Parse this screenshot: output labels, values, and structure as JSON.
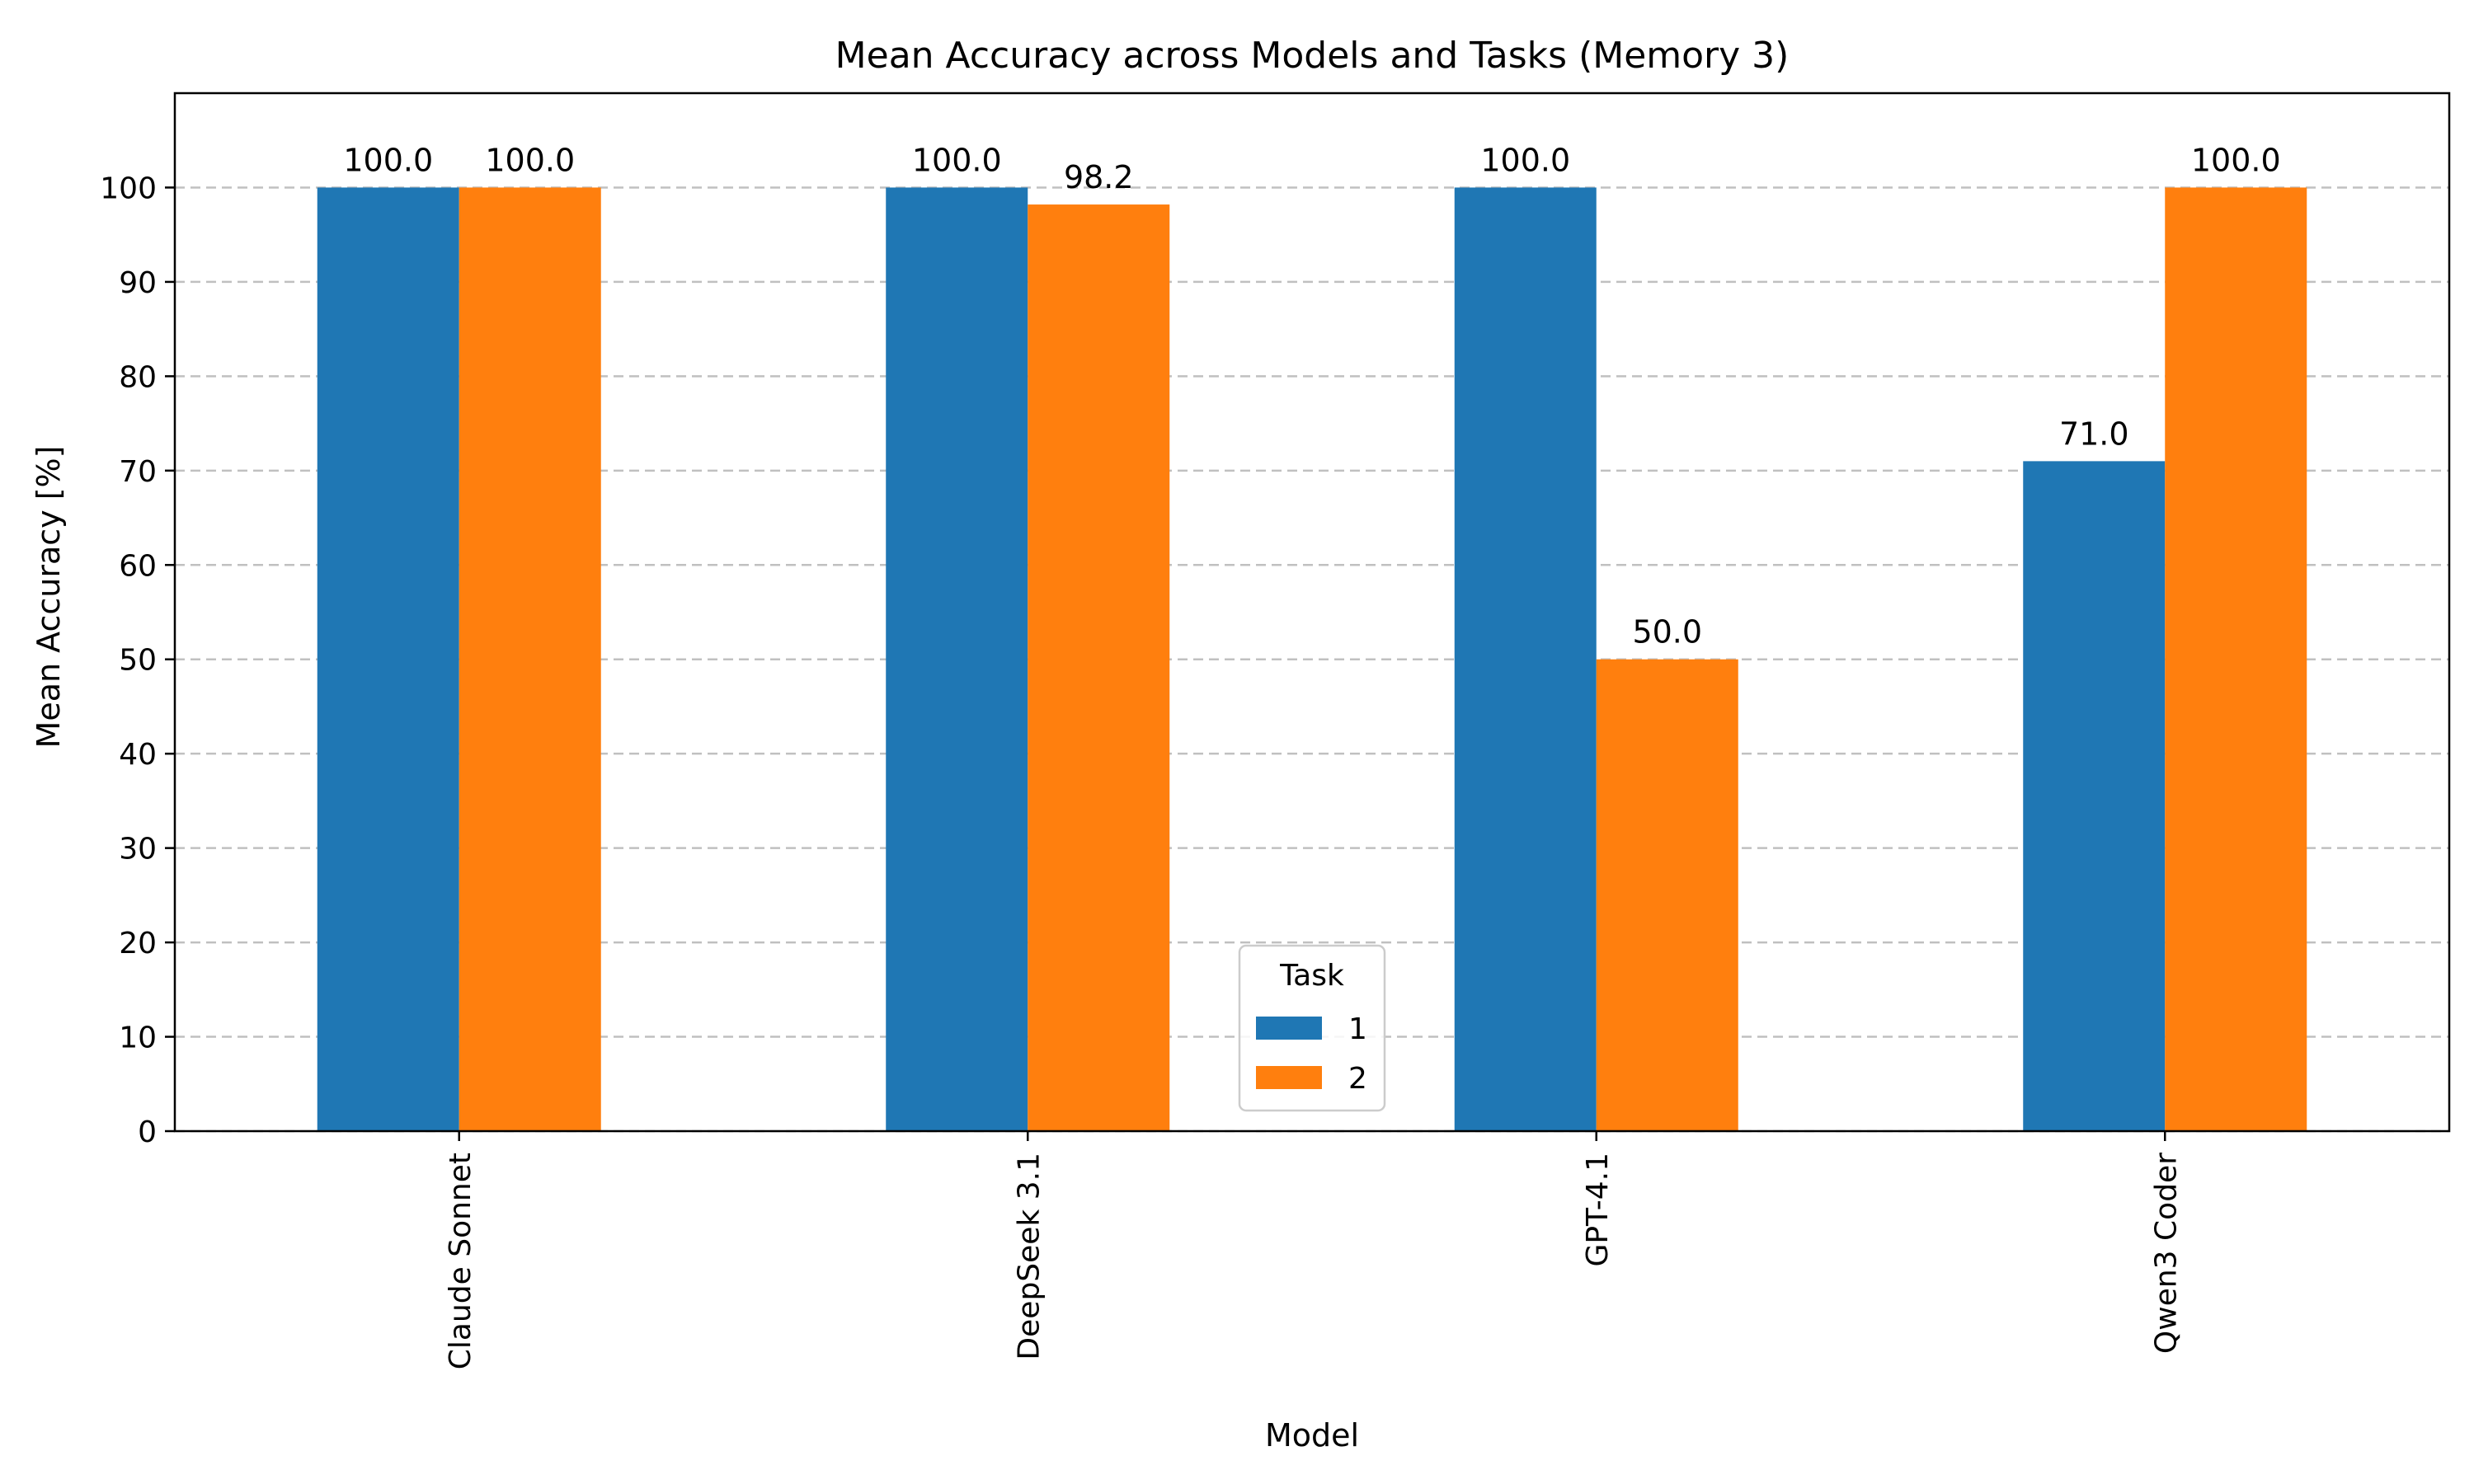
{
  "chart_data": {
    "type": "bar",
    "title": "Mean Accuracy across Models and Tasks (Memory 3)",
    "xlabel": "Model",
    "ylabel": "Mean Accuracy [%]",
    "categories": [
      "Claude Sonnet",
      "DeepSeek 3.1",
      "GPT-4.1",
      "Qwen3 Coder"
    ],
    "series": [
      {
        "name": "1",
        "values": [
          100.0,
          100.0,
          100.0,
          71.0
        ],
        "labels": [
          "100.0",
          "100.0",
          "100.0",
          "71.0"
        ],
        "color": "#1f77b4"
      },
      {
        "name": "2",
        "values": [
          100.0,
          98.2,
          50.0,
          100.0
        ],
        "labels": [
          "100.0",
          "98.2",
          "50.0",
          "100.0"
        ],
        "color": "#ff7f0e"
      }
    ],
    "ylim": [
      0,
      110
    ],
    "yticks": [
      0,
      10,
      20,
      30,
      40,
      50,
      60,
      70,
      80,
      90,
      100
    ],
    "ytick_labels": [
      "0",
      "10",
      "20",
      "30",
      "40",
      "50",
      "60",
      "70",
      "80",
      "90",
      "100"
    ],
    "grid": {
      "y": true,
      "style": "dashed"
    },
    "legend": {
      "title": "Task",
      "placement": "lower-center"
    }
  }
}
